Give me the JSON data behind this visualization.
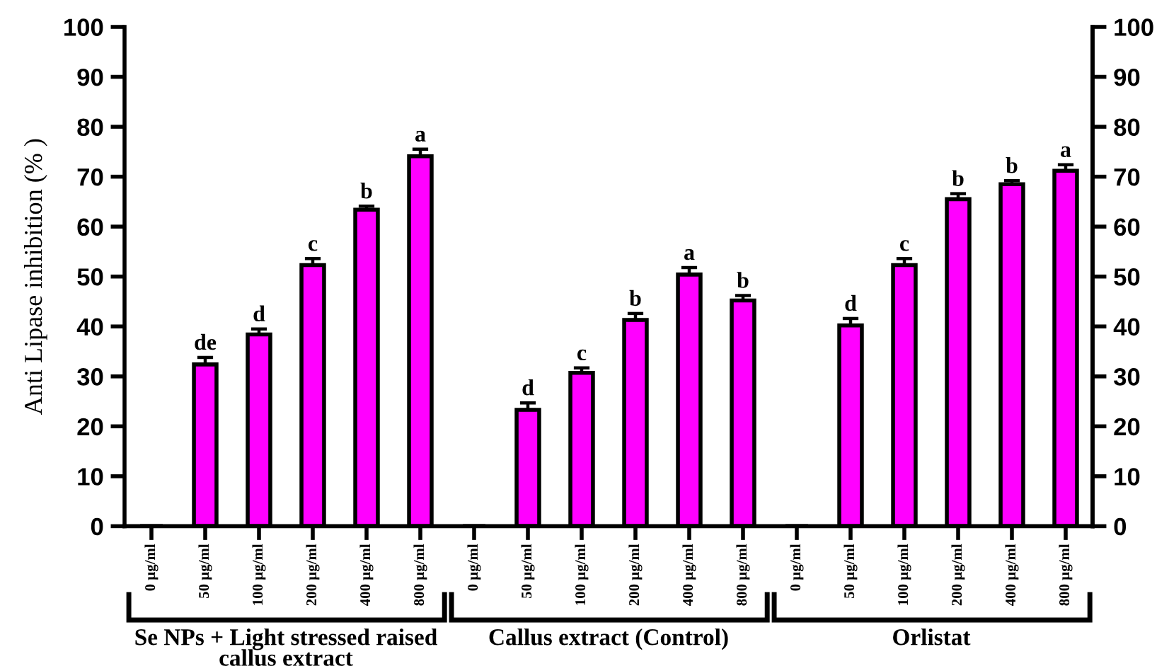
{
  "chart_data": {
    "type": "bar",
    "ylabel": "Anti Lipase inhibition (% )",
    "categories": [
      "0 µg/ml",
      "50 µg/ml",
      "100 µg/ml",
      "200 µg/ml",
      "400 µg/ml",
      "800 µg/ml",
      "0 µg/ml",
      "50 µg/ml",
      "100 µg/ml",
      "200 µg/ml",
      "400 µg/ml",
      "800 µg/ml",
      "0 µg/ml",
      "50 µg/ml",
      "100 µg/ml",
      "200 µg/ml",
      "400 µg/ml",
      "800 µg/ml"
    ],
    "values": [
      0,
      32.4,
      38.4,
      52.3,
      63.4,
      74.1,
      0,
      23.3,
      30.7,
      41.3,
      50.4,
      45.2,
      0,
      40.2,
      52.3,
      65.5,
      68.5,
      71.2
    ],
    "errors": [
      null,
      [
        32.4,
        33.8
      ],
      [
        38.4,
        39.5
      ],
      [
        52.3,
        53.6
      ],
      [
        63.4,
        64.1
      ],
      [
        74.1,
        75.5
      ],
      null,
      [
        23.3,
        24.7
      ],
      [
        30.7,
        31.7
      ],
      [
        41.3,
        42.6
      ],
      [
        50.4,
        51.8
      ],
      [
        45.2,
        46.2
      ],
      null,
      [
        40.2,
        41.6
      ],
      [
        52.3,
        53.6
      ],
      [
        65.5,
        66.6
      ],
      [
        68.5,
        69.2
      ],
      [
        71.2,
        72.4
      ]
    ],
    "value_labels": [
      null,
      "de",
      "d",
      "c",
      "b",
      "a",
      null,
      "d",
      "c",
      "b",
      "a",
      "b",
      null,
      "d",
      "c",
      "b",
      "b",
      "a"
    ],
    "color": "#ff00ff",
    "ylim": [
      0,
      100
    ],
    "yticks": [
      0,
      10,
      20,
      30,
      40,
      50,
      60,
      70,
      80,
      90,
      100
    ],
    "y2lim": [
      0,
      100
    ],
    "y2ticks": [
      0,
      10,
      20,
      30,
      40,
      50,
      60,
      70,
      80,
      90,
      100
    ],
    "annotations": [
      "Se NPs + Light stressed raised\ncallus extract",
      "Callus extract (Control)",
      "Orlistat"
    ]
  }
}
